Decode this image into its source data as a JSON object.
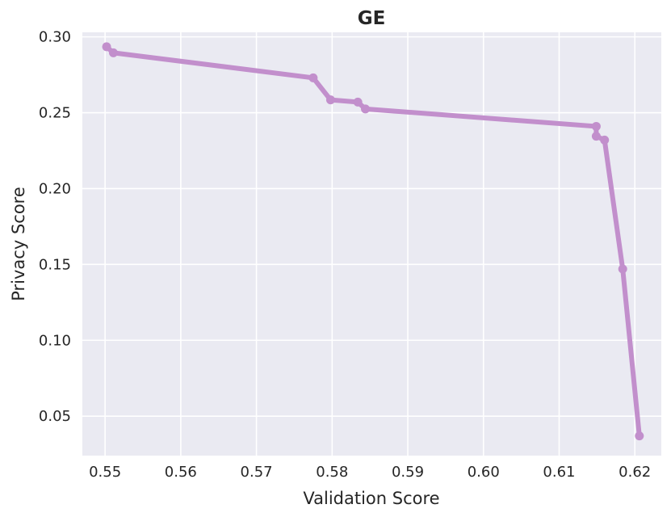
{
  "chart_data": {
    "type": "line",
    "title": "GE",
    "xlabel": "Validation Score",
    "ylabel": "Privacy Score",
    "xlim": [
      0.547,
      0.6235
    ],
    "ylim": [
      0.024,
      0.303
    ],
    "xticks": [
      0.55,
      0.56,
      0.57,
      0.58,
      0.59,
      0.6,
      0.61,
      0.62
    ],
    "xtick_labels": [
      "0.55",
      "0.56",
      "0.57",
      "0.58",
      "0.59",
      "0.60",
      "0.61",
      "0.62"
    ],
    "yticks": [
      0.05,
      0.1,
      0.15,
      0.2,
      0.25,
      0.3
    ],
    "ytick_labels": [
      "0.05",
      "0.10",
      "0.15",
      "0.20",
      "0.25",
      "0.30"
    ],
    "grid": true,
    "legend": "none",
    "colors": {
      "background": "#eaeaf2",
      "grid": "#ffffff",
      "series": "#c28fcc"
    },
    "series": [
      {
        "x": [
          0.5502,
          0.5511,
          0.5775,
          0.5798,
          0.5834,
          0.5844,
          0.6149,
          0.6149,
          0.616,
          0.6184,
          0.6206
        ],
        "y": [
          0.2935,
          0.2895,
          0.273,
          0.2585,
          0.257,
          0.2525,
          0.241,
          0.2345,
          0.232,
          0.147,
          0.037
        ]
      }
    ]
  }
}
